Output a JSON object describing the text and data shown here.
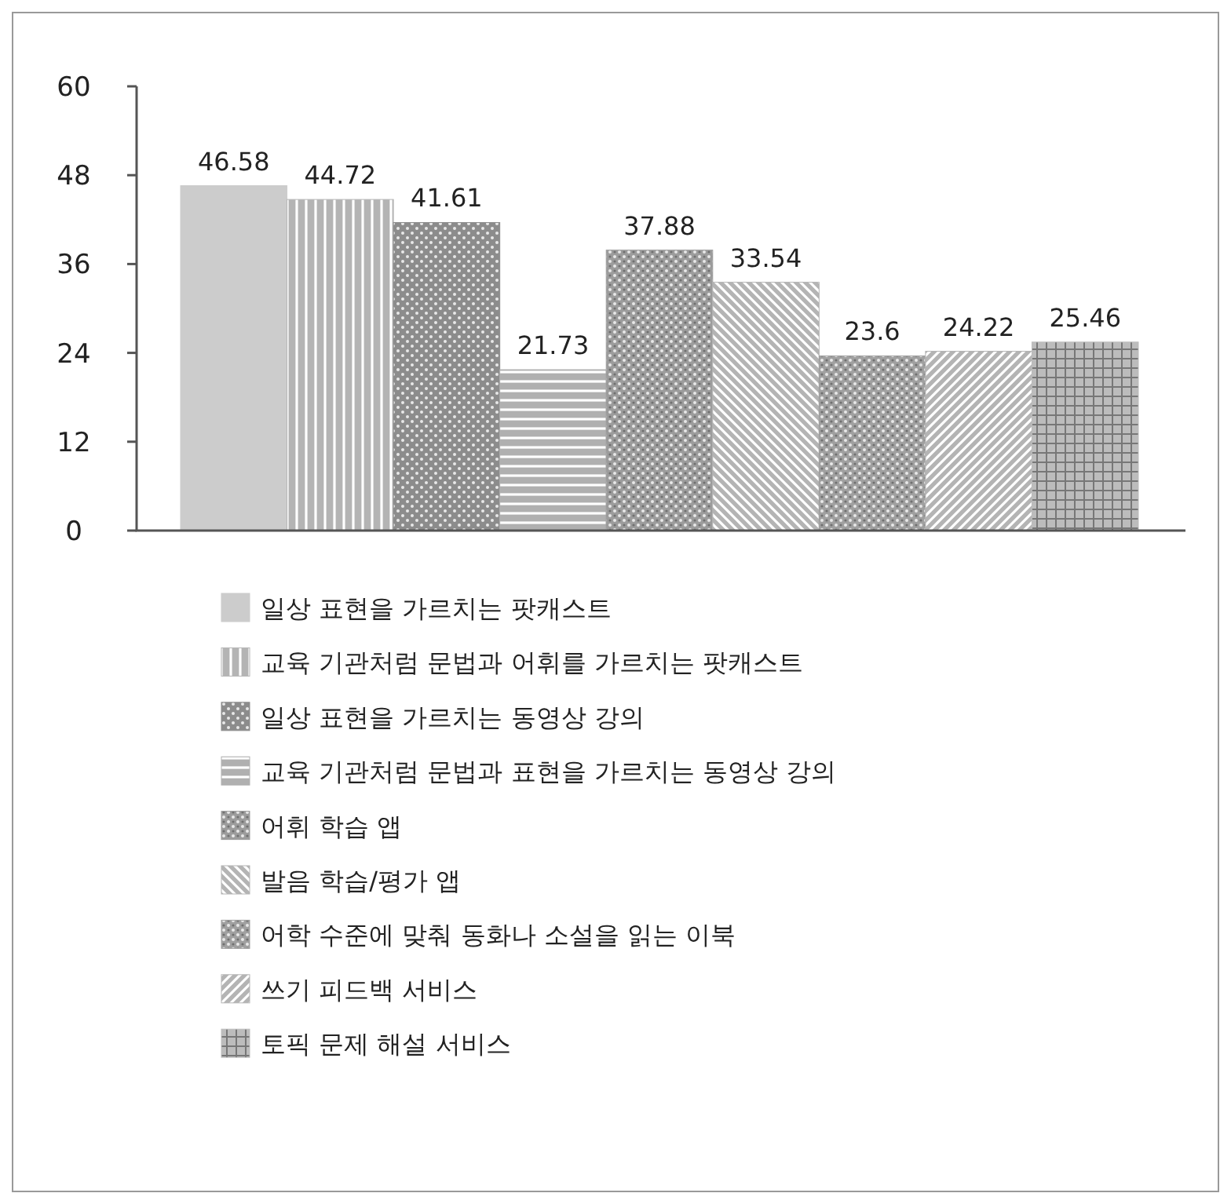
{
  "chart_data": {
    "type": "bar",
    "categories": [
      null
    ],
    "ylim": [
      0,
      60
    ],
    "yticks": [
      0,
      12,
      24,
      36,
      48,
      60
    ],
    "data_labels": true,
    "legend": "bottom",
    "grid": false,
    "series": [
      {
        "name": "일상 표현을 가르치는 팟캐스트",
        "color": "#cccccc",
        "values": [
          46.58
        ]
      },
      {
        "name": "교육 기관처럼 문법과 어휘를 가르치는 팟캐스트",
        "color": "#b4b4b4",
        "values": [
          44.72
        ]
      },
      {
        "name": "일상 표현을 가르치는 동영상 강의",
        "color": "#8c8c8c",
        "values": [
          41.61
        ]
      },
      {
        "name": "교육 기관처럼 문법과 표현을 가르치는 동영상 강의",
        "color": "#b0b0b0",
        "values": [
          21.73
        ]
      },
      {
        "name": "어휘 학습 앱",
        "color": "#9c9c9c",
        "values": [
          37.88
        ]
      },
      {
        "name": "발음 학습/평가 앱",
        "color": "#b4b4b4",
        "values": [
          33.54
        ]
      },
      {
        "name": "어학 수준에 맞춰 동화나 소설을 읽는 이북",
        "color": "#a0a0a0",
        "values": [
          23.6
        ]
      },
      {
        "name": "쓰기 피드백 서비스",
        "color": "#b4b4b4",
        "values": [
          24.22
        ]
      },
      {
        "name": "토픽 문제 해설 서비스",
        "color": "#bcbcbc",
        "values": [
          25.46
        ]
      }
    ]
  }
}
